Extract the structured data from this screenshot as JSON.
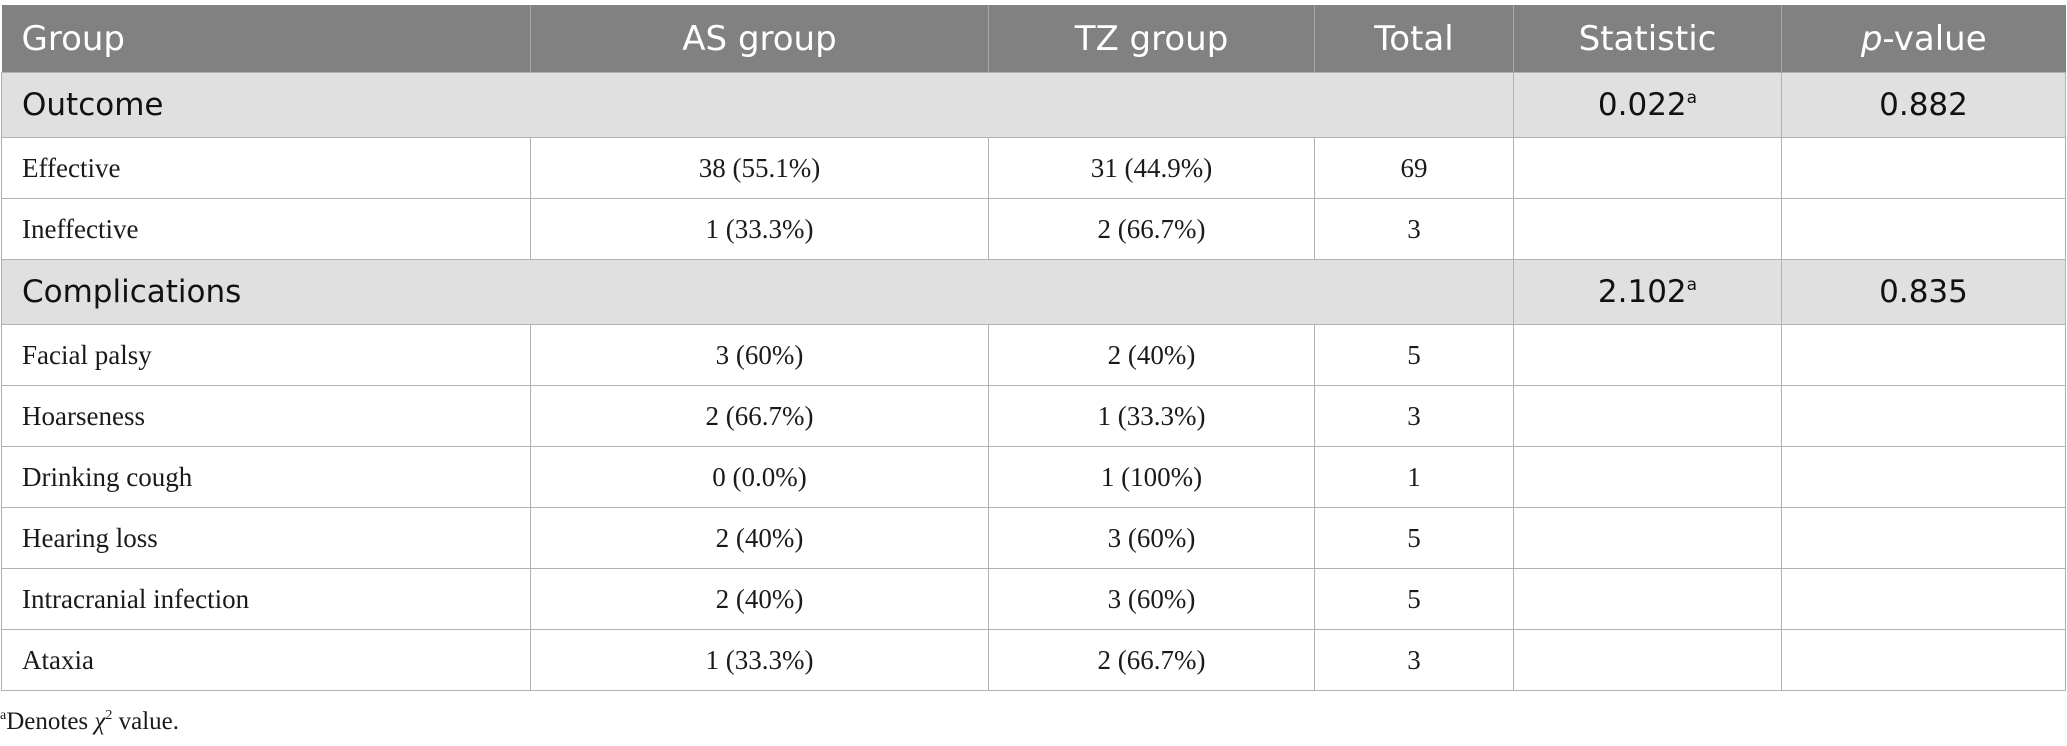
{
  "table": {
    "headers": [
      "Group",
      "AS group",
      "TZ group",
      "Total",
      "Statistic"
    ],
    "pvalue_header": {
      "p": "p",
      "rest": "-value"
    },
    "sections": [
      {
        "label": "Outcome",
        "statistic": "0.022",
        "statistic_mark": "a",
        "p_value": "0.882",
        "rows": [
          [
            "Effective",
            "38 (55.1%)",
            "31 (44.9%)",
            "69"
          ],
          [
            "Ineffective",
            "1 (33.3%)",
            "2 (66.7%)",
            "3"
          ]
        ]
      },
      {
        "label": "Complications",
        "statistic": "2.102",
        "statistic_mark": "a",
        "p_value": "0.835",
        "rows": [
          [
            "Facial palsy",
            "3 (60%)",
            "2 (40%)",
            "5"
          ],
          [
            "Hoarseness",
            "2 (66.7%)",
            "1 (33.3%)",
            "3"
          ],
          [
            "Drinking cough",
            "0 (0.0%)",
            "1 (100%)",
            "1"
          ],
          [
            "Hearing loss",
            "2 (40%)",
            "3 (60%)",
            "5"
          ],
          [
            "Intracranial infection",
            "2 (40%)",
            "3 (60%)",
            "5"
          ],
          [
            "Ataxia",
            "1 (33.3%)",
            "2 (66.7%)",
            "3"
          ]
        ]
      }
    ]
  },
  "footnote": {
    "mark": "a",
    "text_before": "Denotes ",
    "symbol": "χ",
    "symbol_exp": "2",
    "text_after": " value."
  }
}
